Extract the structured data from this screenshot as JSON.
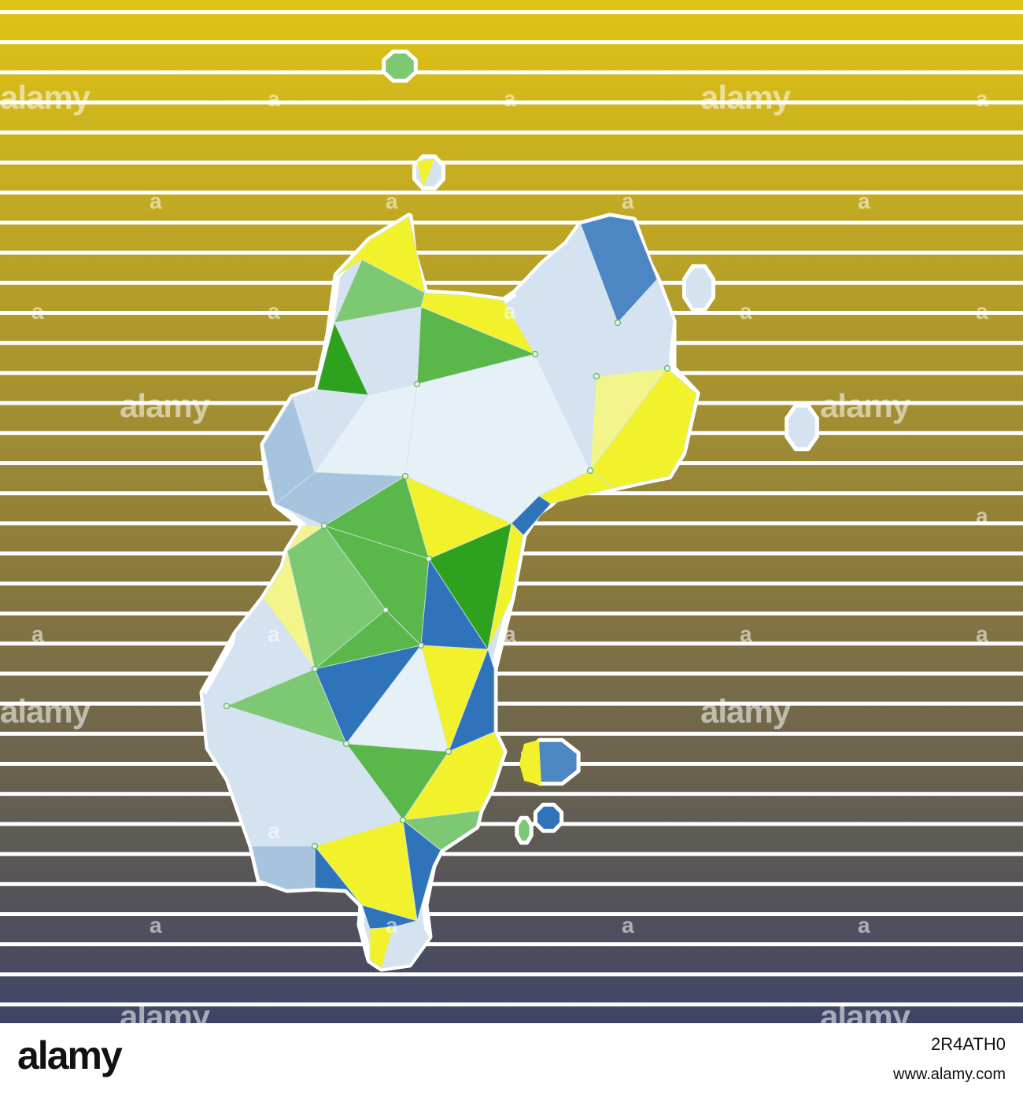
{
  "palette": {
    "bg_top": "#e0c414",
    "bg_mid": "#8c7b3c",
    "bg_bottom": "#3f4466",
    "stripe": "#ffffff",
    "land_light": "#d4e3ef",
    "land_lighter": "#e6f0f7",
    "land_mid": "#a7c4df",
    "blue": "#2f73bb",
    "blue_mid": "#4c87c4",
    "green_dark": "#2ea21e",
    "green": "#5ab84a",
    "green_light": "#7dc873",
    "yellow": "#f2f22c",
    "yellow_pale": "#f3f58a",
    "outline": "#ffffff"
  },
  "map": {
    "style": "low-poly triangulated island silhouette with outlying islets",
    "background": "horizontal white stripes over vertical yellow-to-navy gradient"
  },
  "watermark": {
    "text": "alamy",
    "letter": "a"
  },
  "footer": {
    "logo": "alamy",
    "image_id": "2R4ATH0",
    "url": "www.alamy.com"
  }
}
